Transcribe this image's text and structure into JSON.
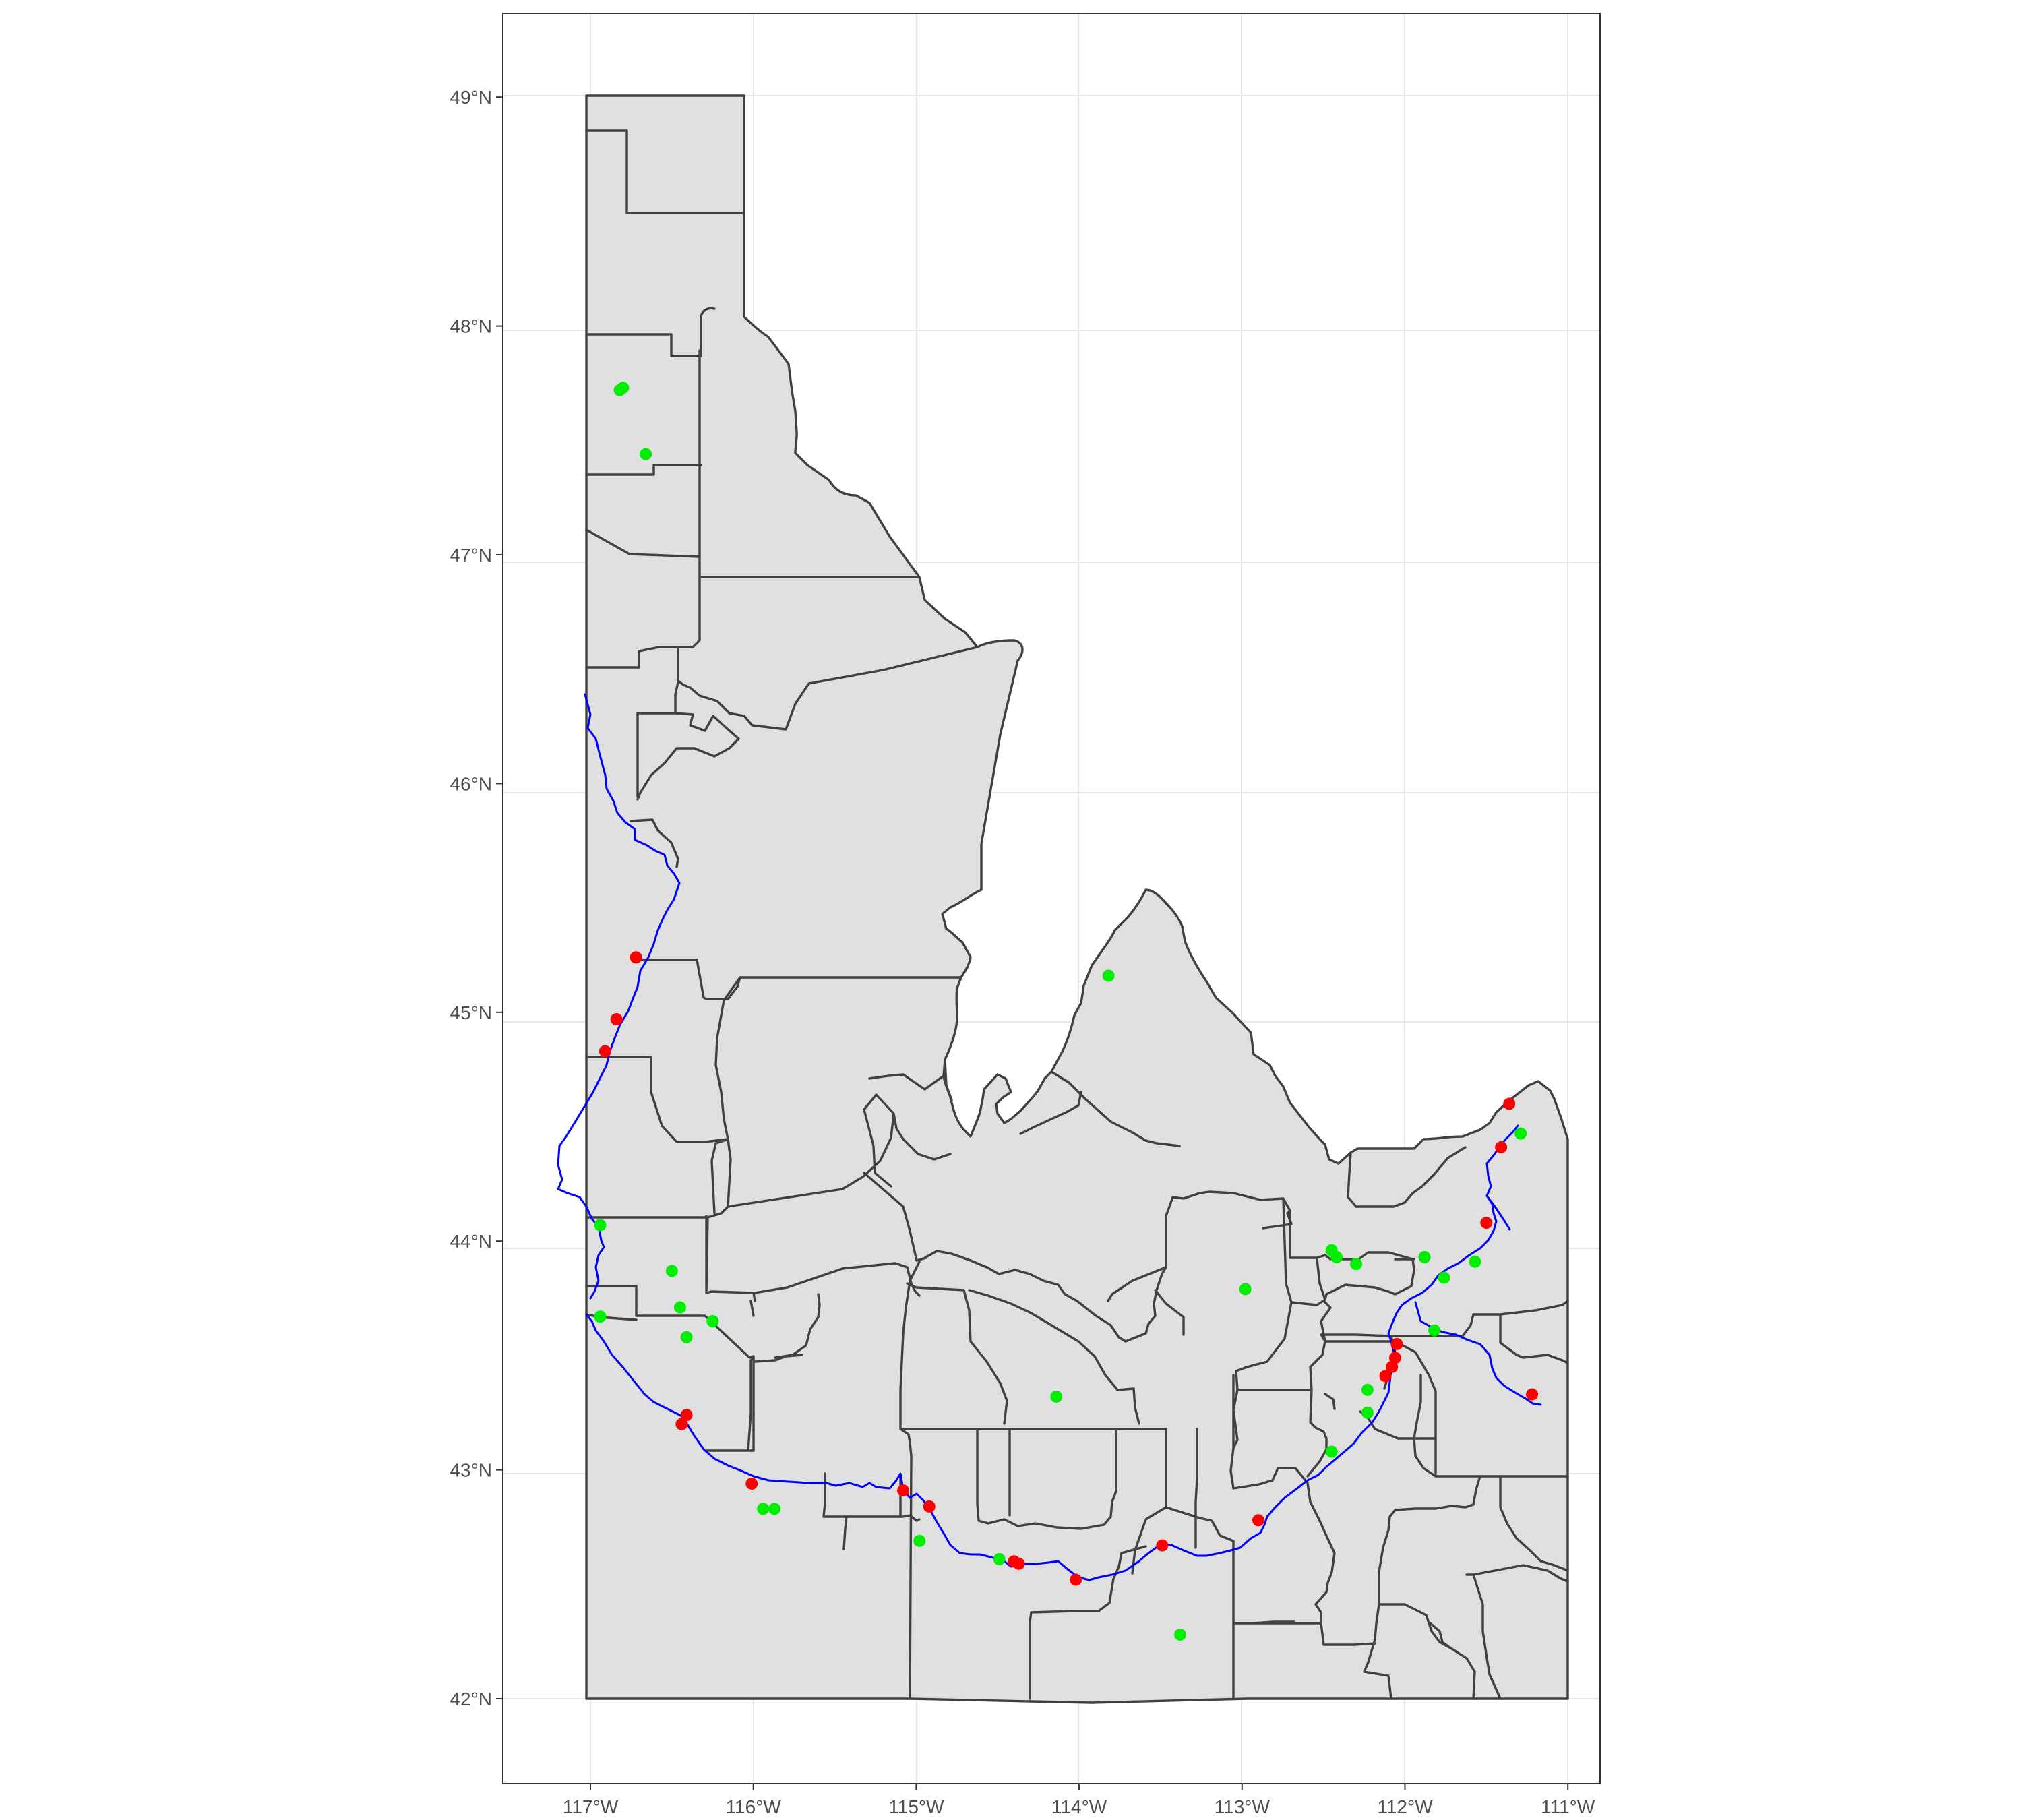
{
  "map": {
    "x_ticks": [
      {
        "value": -117,
        "label": "117°W"
      },
      {
        "value": -116,
        "label": "116°W"
      },
      {
        "value": -115,
        "label": "115°W"
      },
      {
        "value": -114,
        "label": "114°W"
      },
      {
        "value": -113,
        "label": "113°W"
      },
      {
        "value": -112,
        "label": "112°W"
      },
      {
        "value": -111,
        "label": "111°W"
      }
    ],
    "y_ticks": [
      {
        "value": 42,
        "label": "42°N"
      },
      {
        "value": 43,
        "label": "43°N"
      },
      {
        "value": 44,
        "label": "44°N"
      },
      {
        "value": 45,
        "label": "45°N"
      },
      {
        "value": 46,
        "label": "46°N"
      },
      {
        "value": 47,
        "label": "47°N"
      },
      {
        "value": 48,
        "label": "48°N"
      },
      {
        "value": 49,
        "label": "49°N"
      }
    ],
    "lon_range": [
      -117.52,
      -110.73
    ],
    "lat_range": [
      41.65,
      49.34
    ],
    "colors": {
      "county_fill": "#e0e0e0",
      "county_border": "#404040",
      "river": "#0000ff",
      "red_points": "#ff0000",
      "green_points": "#00ee00"
    },
    "red_points": [
      [
        -116.72,
        45.24
      ],
      [
        -116.84,
        44.97
      ],
      [
        -116.91,
        44.83
      ],
      [
        -116.41,
        43.24
      ],
      [
        -116.44,
        43.2
      ],
      [
        -116.01,
        42.94
      ],
      [
        -115.08,
        42.91
      ],
      [
        -114.92,
        42.84
      ],
      [
        -114.4,
        42.6
      ],
      [
        -114.37,
        42.59
      ],
      [
        -114.02,
        42.52
      ],
      [
        -113.49,
        42.67
      ],
      [
        -112.9,
        42.78
      ],
      [
        -112.12,
        43.41
      ],
      [
        -112.08,
        43.45
      ],
      [
        -112.06,
        43.49
      ],
      [
        -112.05,
        43.55
      ],
      [
        -111.5,
        44.08
      ],
      [
        -111.41,
        44.41
      ],
      [
        -111.36,
        44.6
      ],
      [
        -111.22,
        43.33
      ]
    ],
    "green_points": [
      [
        -116.82,
        47.72
      ],
      [
        -116.8,
        47.73
      ],
      [
        -116.66,
        47.44
      ],
      [
        -116.94,
        44.07
      ],
      [
        -116.5,
        43.87
      ],
      [
        -116.45,
        43.71
      ],
      [
        -116.41,
        43.58
      ],
      [
        -116.25,
        43.65
      ],
      [
        -116.94,
        43.67
      ],
      [
        -115.94,
        42.83
      ],
      [
        -115.87,
        42.83
      ],
      [
        -114.98,
        42.69
      ],
      [
        -114.49,
        42.61
      ],
      [
        -113.82,
        45.16
      ],
      [
        -114.14,
        43.32
      ],
      [
        -113.38,
        42.28
      ],
      [
        -112.98,
        43.79
      ],
      [
        -112.45,
        43.96
      ],
      [
        -112.42,
        43.93
      ],
      [
        -112.3,
        43.9
      ],
      [
        -112.23,
        43.35
      ],
      [
        -112.23,
        43.25
      ],
      [
        -112.45,
        43.08
      ],
      [
        -111.88,
        43.93
      ],
      [
        -111.76,
        43.84
      ],
      [
        -111.82,
        43.61
      ],
      [
        -111.57,
        43.91
      ],
      [
        -111.29,
        44.47
      ]
    ]
  }
}
